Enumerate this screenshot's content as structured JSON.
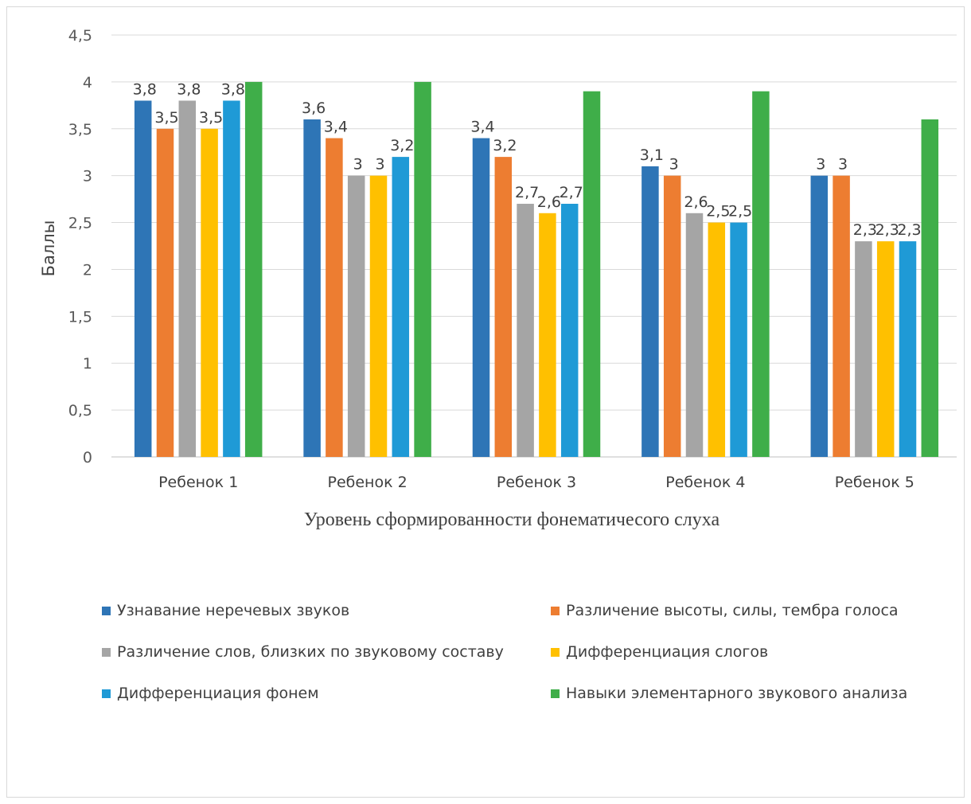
{
  "chart_data": {
    "type": "bar",
    "title": "",
    "xlabel": "Уровень сформированности фонематичесого слуха",
    "ylabel": "Баллы",
    "ylim": [
      0,
      4.5
    ],
    "yticks": [
      "0",
      "0,5",
      "1",
      "1,5",
      "2",
      "2,5",
      "3",
      "3,5",
      "4",
      "4,5"
    ],
    "grid": true,
    "legend_position": "bottom",
    "categories": [
      "Ребенок 1",
      "Ребенок 2",
      "Ребенок 3",
      "Ребенок 4",
      "Ребенок 5"
    ],
    "series": [
      {
        "name": "Узнавание неречевых звуков",
        "color": "#2e75b6",
        "values": [
          3.8,
          3.6,
          3.4,
          3.1,
          3.0
        ],
        "labels": [
          "3,8",
          "3,6",
          "3,4",
          "3,1",
          "3"
        ]
      },
      {
        "name": "Различение высоты, силы, тембра голоса",
        "color": "#ed7d31",
        "values": [
          3.5,
          3.4,
          3.2,
          3.0,
          3.0
        ],
        "labels": [
          "3,5",
          "3,4",
          "3,2",
          "3",
          "3"
        ]
      },
      {
        "name": "Различение слов, близких по звуковому составу",
        "color": "#a5a5a5",
        "values": [
          3.8,
          3.0,
          2.7,
          2.6,
          2.3
        ],
        "labels": [
          "3,8",
          "3",
          "2,7",
          "2,6",
          "2,3"
        ]
      },
      {
        "name": "Дифференциация слогов",
        "color": "#ffc000",
        "values": [
          3.5,
          3.0,
          2.6,
          2.5,
          2.3
        ],
        "labels": [
          "3,5",
          "3",
          "2,6",
          "2,5",
          "2,3"
        ]
      },
      {
        "name": "Дифференциация фонем",
        "color": "#1f9ad6",
        "values": [
          3.8,
          3.2,
          2.7,
          2.5,
          2.3
        ],
        "labels": [
          "3,8",
          "3,2",
          "2,7",
          "2,5",
          "2,3"
        ]
      },
      {
        "name": "Навыки элементарного звукового анализа",
        "color": "#3fae49",
        "values": [
          4.0,
          4.0,
          3.9,
          3.9,
          3.6
        ],
        "labels": [
          "",
          "",
          "",
          "",
          ""
        ]
      }
    ]
  }
}
